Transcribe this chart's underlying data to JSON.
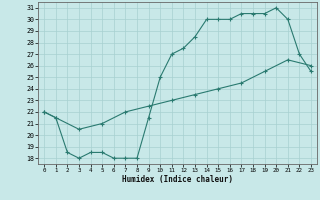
{
  "xlabel": "Humidex (Indice chaleur)",
  "bg_color": "#c8e8e8",
  "grid_color": "#a8d0d0",
  "line_color": "#2a7a70",
  "xlim": [
    -0.5,
    23.5
  ],
  "ylim": [
    17.5,
    31.5
  ],
  "xtick_labels": [
    "0",
    "1",
    "2",
    "3",
    "4",
    "5",
    "6",
    "7",
    "8",
    "9",
    "10",
    "11",
    "12",
    "13",
    "14",
    "15",
    "16",
    "17",
    "18",
    "19",
    "20",
    "21",
    "22",
    "23"
  ],
  "ytick_labels": [
    "18",
    "19",
    "20",
    "21",
    "22",
    "23",
    "24",
    "25",
    "26",
    "27",
    "28",
    "29",
    "30",
    "31"
  ],
  "ytick_vals": [
    18,
    19,
    20,
    21,
    22,
    23,
    24,
    25,
    26,
    27,
    28,
    29,
    30,
    31
  ],
  "curve1_x": [
    0,
    1,
    2,
    3,
    4,
    5,
    6,
    7,
    8,
    9,
    10,
    11,
    12,
    13,
    14,
    15,
    16,
    17,
    18,
    19,
    20,
    21,
    22,
    23
  ],
  "curve1_y": [
    22.0,
    21.5,
    18.5,
    18.0,
    18.5,
    18.5,
    18.0,
    18.0,
    18.0,
    21.5,
    25.0,
    27.0,
    27.5,
    28.5,
    30.0,
    30.0,
    30.0,
    30.5,
    30.5,
    30.5,
    31.0,
    30.0,
    27.0,
    25.5
  ],
  "curve2_x": [
    0,
    1,
    3,
    5,
    7,
    9,
    11,
    13,
    15,
    17,
    19,
    21,
    23
  ],
  "curve2_y": [
    22.0,
    21.5,
    20.5,
    21.0,
    22.0,
    22.5,
    23.0,
    23.5,
    24.0,
    24.5,
    25.5,
    26.5,
    26.0
  ]
}
